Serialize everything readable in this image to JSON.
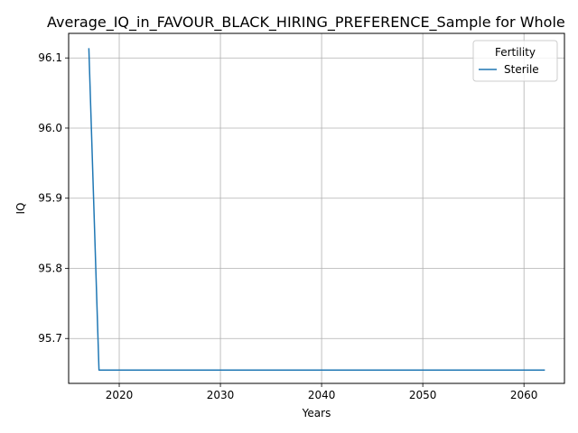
{
  "chart_data": {
    "type": "line",
    "title": "Average_IQ_in_FAVOUR_BLACK_HIRING_PREFERENCE_Sample for Whole",
    "xlabel": "Years",
    "ylabel": "IQ",
    "xlim": [
      2015,
      2064
    ],
    "ylim": [
      95.636,
      96.135
    ],
    "xticks": [
      2020,
      2030,
      2040,
      2050,
      2060
    ],
    "xtick_labels": [
      "2020",
      "2030",
      "2040",
      "2050",
      "2060"
    ],
    "yticks": [
      95.7,
      95.8,
      95.9,
      96.0,
      96.1
    ],
    "ytick_labels": [
      "95.7",
      "95.8",
      "95.9",
      "96.0",
      "96.1"
    ],
    "grid": true,
    "legend": {
      "title": "Fertility",
      "position": "top-right"
    },
    "series": [
      {
        "name": "Sterile",
        "color": "#1f77b4",
        "x": [
          2017,
          2018,
          2062
        ],
        "y": [
          96.113,
          95.655,
          95.655
        ]
      }
    ]
  }
}
